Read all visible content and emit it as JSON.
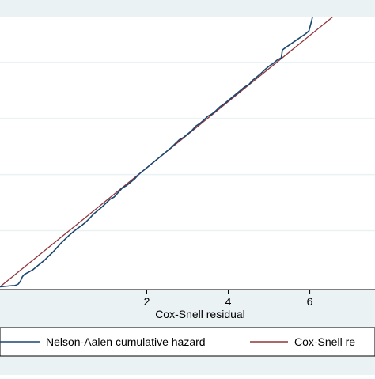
{
  "chart_data": {
    "type": "line",
    "xlabel": "Cox-Snell residual",
    "ylabel": "",
    "xlim": [
      -1.6,
      7.6
    ],
    "ylim": [
      -0.05,
      4.8
    ],
    "x_ticks": [
      2,
      4,
      6
    ],
    "x_tick_labels": [
      "2",
      "4",
      "6"
    ],
    "y_gridlines": [
      1,
      2,
      3,
      4
    ],
    "grid": true,
    "legend_position": "bottom",
    "colors": {
      "background": "#eaf2f3",
      "plot_background": "#ffffff",
      "gridline": "#eaf2f3",
      "nelson_aalen": "#1a476f",
      "reference": "#90353b"
    },
    "series": [
      {
        "name": "Nelson-Aalen cumulative hazard",
        "color": "#1a476f",
        "x": [
          -1.6,
          -1.3,
          -1.25,
          -1.2,
          -1.15,
          -1.1,
          -1.05,
          -1.0,
          -0.9,
          -0.8,
          -0.7,
          -0.6,
          -0.5,
          -0.4,
          -0.3,
          -0.2,
          -0.1,
          0.0,
          0.1,
          0.2,
          0.3,
          0.4,
          0.5,
          0.6,
          0.7,
          0.8,
          0.9,
          1.0,
          1.1,
          1.2,
          1.3,
          1.4,
          1.5,
          1.6,
          1.7,
          1.8,
          1.9,
          2.0,
          2.1,
          2.2,
          2.3,
          2.4,
          2.5,
          2.6,
          2.7,
          2.8,
          2.9,
          3.0,
          3.1,
          3.2,
          3.3,
          3.4,
          3.5,
          3.6,
          3.7,
          3.8,
          3.9,
          4.0,
          4.1,
          4.2,
          4.3,
          4.4,
          4.5,
          4.6,
          4.7,
          4.8,
          4.9,
          5.0,
          5.1,
          5.2,
          5.3,
          5.33,
          5.4,
          5.5,
          5.6,
          5.7,
          5.8,
          5.9,
          5.98,
          6.05,
          6.1,
          6.2,
          6.3,
          7.6
        ],
        "y": [
          0.0,
          0.02,
          0.02,
          0.03,
          0.05,
          0.1,
          0.18,
          0.22,
          0.26,
          0.3,
          0.36,
          0.42,
          0.48,
          0.55,
          0.62,
          0.7,
          0.78,
          0.85,
          0.92,
          0.98,
          1.04,
          1.09,
          1.15,
          1.22,
          1.3,
          1.36,
          1.42,
          1.49,
          1.56,
          1.6,
          1.68,
          1.76,
          1.8,
          1.86,
          1.92,
          2.0,
          2.06,
          2.12,
          2.18,
          2.24,
          2.3,
          2.36,
          2.42,
          2.48,
          2.55,
          2.62,
          2.66,
          2.72,
          2.78,
          2.86,
          2.91,
          2.97,
          3.04,
          3.08,
          3.14,
          3.21,
          3.26,
          3.32,
          3.38,
          3.44,
          3.5,
          3.56,
          3.6,
          3.68,
          3.74,
          3.8,
          3.87,
          3.93,
          3.98,
          4.04,
          4.08,
          4.22,
          4.26,
          4.31,
          4.36,
          4.41,
          4.46,
          4.51,
          4.56,
          4.75,
          4.92,
          5.08,
          5.12,
          5.4
        ]
      },
      {
        "name": "Cox-Snell residual",
        "color": "#90353b",
        "x": [
          -1.6,
          7.6
        ],
        "y": [
          0.0,
          5.42
        ]
      }
    ],
    "legend_entries": [
      "Nelson-Aalen cumulative hazard",
      "Cox-Snell re"
    ]
  }
}
